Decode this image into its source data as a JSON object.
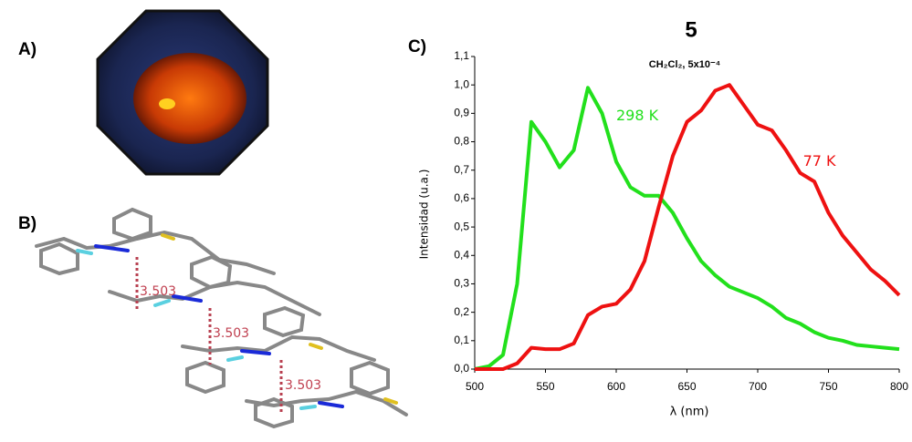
{
  "panels": {
    "a": "A)",
    "b": "B)",
    "c": "C)"
  },
  "distances": [
    "3.503",
    "3.503",
    "3.503"
  ],
  "chart_data": {
    "type": "line",
    "title": "5",
    "subtitle": "CH₂Cl₂, 5x10⁻⁴",
    "x_label": "λ (nm)",
    "y_label": "Intensidad (u.a.)",
    "x": [
      500,
      510,
      520,
      530,
      540,
      550,
      560,
      570,
      580,
      590,
      600,
      610,
      620,
      630,
      640,
      650,
      660,
      670,
      680,
      690,
      700,
      710,
      720,
      730,
      740,
      750,
      760,
      770,
      780,
      790,
      800
    ],
    "series": [
      {
        "name": "298 K",
        "color": "#22e01c",
        "values": [
          0.0,
          0.01,
          0.05,
          0.3,
          0.87,
          0.8,
          0.71,
          0.77,
          0.99,
          0.9,
          0.73,
          0.64,
          0.61,
          0.61,
          0.55,
          0.46,
          0.38,
          0.33,
          0.29,
          0.27,
          0.25,
          0.22,
          0.18,
          0.16,
          0.13,
          0.11,
          0.1,
          0.085,
          0.08,
          0.075,
          0.07
        ]
      },
      {
        "name": "77 K",
        "color": "#ee1111",
        "values": [
          0,
          0,
          0,
          0.02,
          0.075,
          0.07,
          0.07,
          0.09,
          0.19,
          0.22,
          0.23,
          0.28,
          0.38,
          0.57,
          0.75,
          0.87,
          0.91,
          0.98,
          1.0,
          0.93,
          0.86,
          0.84,
          0.77,
          0.69,
          0.66,
          0.55,
          0.47,
          0.41,
          0.35,
          0.31,
          0.26
        ]
      }
    ],
    "xlim": [
      500,
      800
    ],
    "xticks": [
      500,
      550,
      600,
      650,
      700,
      750,
      800
    ],
    "ylim": [
      0,
      1.1
    ],
    "yticks": [
      {
        "value": 0,
        "label": "0,0"
      },
      {
        "value": 0.1,
        "label": "0,1"
      },
      {
        "value": 0.2,
        "label": "0,2"
      },
      {
        "value": 0.3,
        "label": "0,3"
      },
      {
        "value": 0.4,
        "label": "0,4"
      },
      {
        "value": 0.5,
        "label": "0,5"
      },
      {
        "value": 0.6,
        "label": "0,6"
      },
      {
        "value": 0.7,
        "label": "0,7"
      },
      {
        "value": 0.8,
        "label": "0,8"
      },
      {
        "value": 0.9,
        "label": "0,9"
      },
      {
        "value": 1.0,
        "label": "1,0"
      },
      {
        "value": 1.1,
        "label": "1,1"
      }
    ]
  }
}
